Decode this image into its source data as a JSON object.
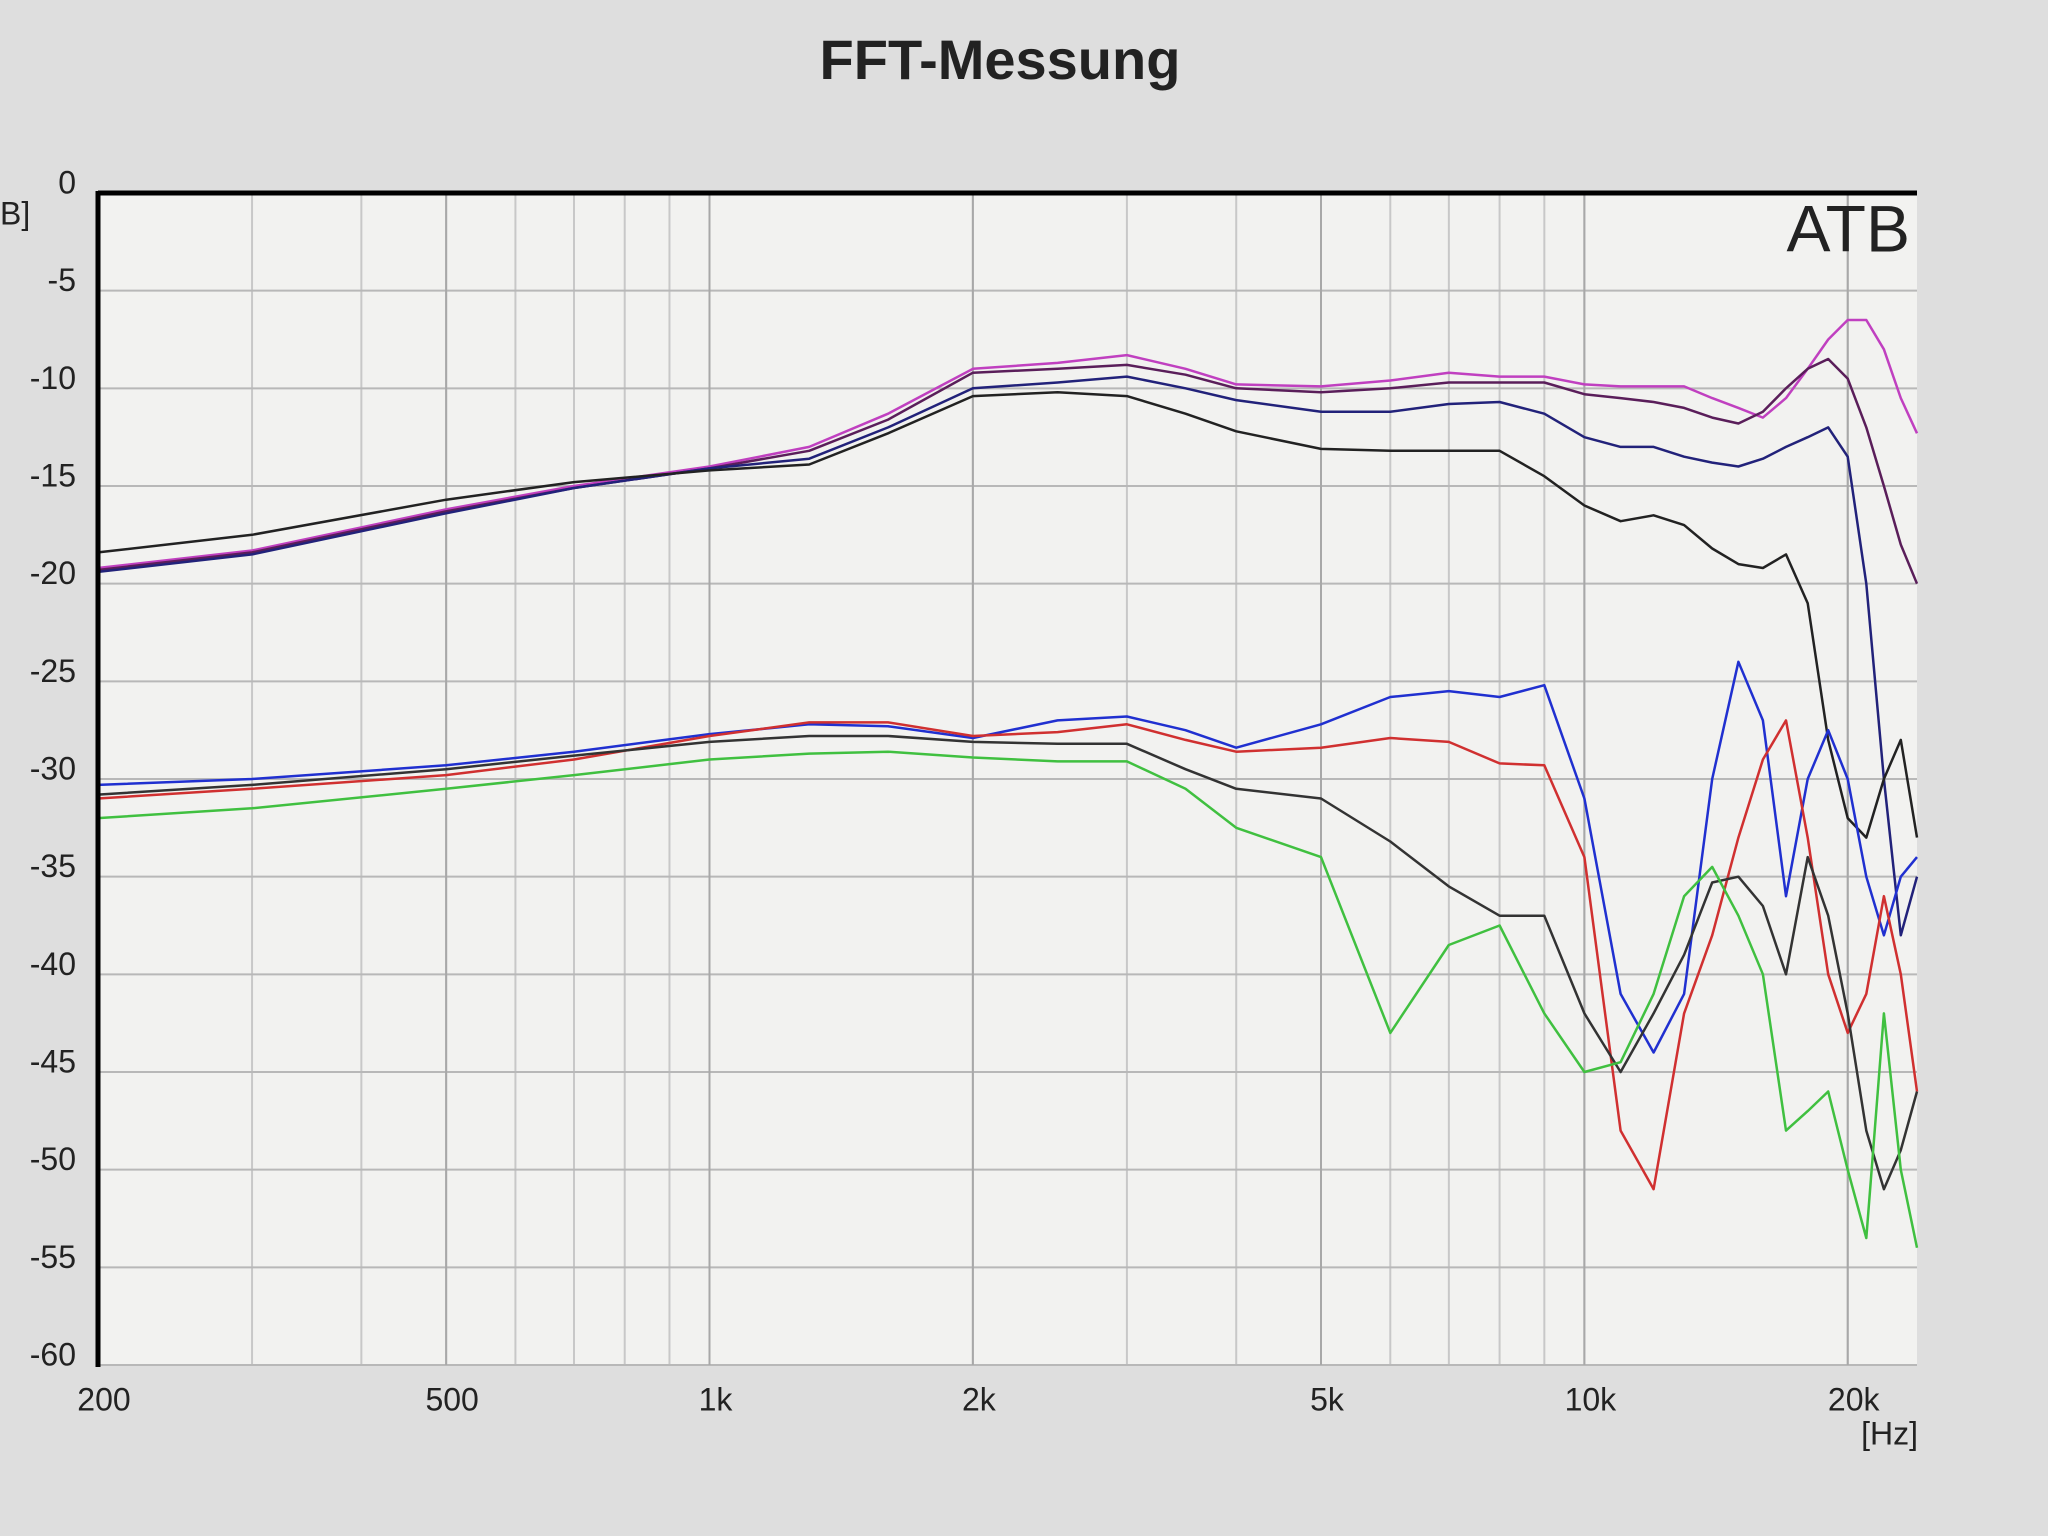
{
  "chart_data": {
    "type": "line",
    "title": "FFT-Messung",
    "y_label": "B]",
    "x_label": "[Hz]",
    "annotation": "ATB",
    "xscale": "log",
    "grid": true,
    "minor_grid": true,
    "xlim": [
      200,
      24000
    ],
    "ylim": [
      -60,
      0
    ],
    "xticks": [
      200,
      500,
      {
        "value": 1000,
        "label": "1k"
      },
      {
        "value": 2000,
        "label": "2k"
      },
      {
        "value": 5000,
        "label": "5k"
      },
      {
        "value": 10000,
        "label": "10k"
      },
      {
        "value": 20000,
        "label": "20k"
      }
    ],
    "yticks": [
      0,
      -5,
      -10,
      -15,
      -20,
      -25,
      -30,
      -35,
      -40,
      -45,
      -50,
      -55,
      -60
    ],
    "x": [
      200,
      300,
      500,
      700,
      1000,
      1300,
      1600,
      2000,
      2500,
      3000,
      3500,
      4000,
      5000,
      6000,
      7000,
      8000,
      9000,
      10000,
      11000,
      12000,
      13000,
      14000,
      15000,
      16000,
      17000,
      18000,
      19000,
      20000,
      21000,
      22000,
      23000,
      24000
    ],
    "series": [
      {
        "color": "#c040c0",
        "values": [
          -19.2,
          -18.3,
          -16.2,
          -15,
          -14,
          -13,
          -11.3,
          -9.0,
          -8.7,
          -8.3,
          -9,
          -9.8,
          -9.9,
          -9.6,
          -9.2,
          -9.4,
          -9.4,
          -9.8,
          -9.9,
          -9.9,
          -9.9,
          -10.5,
          -11,
          -11.5,
          -10.5,
          -9,
          -7.5,
          -6.5,
          -6.5,
          -8,
          -10.5,
          -12.3
        ]
      },
      {
        "color": "#5a1e5a",
        "values": [
          -19.3,
          -18.4,
          -16.3,
          -15.1,
          -14.1,
          -13.2,
          -11.6,
          -9.2,
          -9.0,
          -8.8,
          -9.3,
          -10,
          -10.2,
          -10,
          -9.7,
          -9.7,
          -9.7,
          -10.3,
          -10.5,
          -10.7,
          -11,
          -11.5,
          -11.8,
          -11.2,
          -10,
          -9,
          -8.5,
          -9.5,
          -12,
          -15,
          -18,
          -20
        ]
      },
      {
        "color": "#22227a",
        "values": [
          -19.4,
          -18.5,
          -16.4,
          -15.1,
          -14.1,
          -13.6,
          -12,
          -10,
          -9.7,
          -9.4,
          -10,
          -10.6,
          -11.2,
          -11.2,
          -10.8,
          -10.7,
          -11.3,
          -12.5,
          -13,
          -13,
          -13.5,
          -13.8,
          -14,
          -13.6,
          -13,
          -12.5,
          -12,
          -13.5,
          -20,
          -30,
          -38,
          -35
        ]
      },
      {
        "color": "#222222",
        "values": [
          -18.4,
          -17.5,
          -15.7,
          -14.8,
          -14.2,
          -13.9,
          -12.3,
          -10.4,
          -10.2,
          -10.4,
          -11.3,
          -12.2,
          -13.1,
          -13.2,
          -13.2,
          -13.2,
          -14.5,
          -16,
          -16.8,
          -16.5,
          -17,
          -18.2,
          -19,
          -19.2,
          -18.5,
          -21,
          -28,
          -32,
          -33,
          -30,
          -28,
          -33
        ]
      },
      {
        "color": "#2030d0",
        "values": [
          -30.3,
          -30,
          -29.3,
          -28.6,
          -27.7,
          -27.2,
          -27.3,
          -27.9,
          -27,
          -26.8,
          -27.5,
          -28.4,
          -27.2,
          -25.8,
          -25.5,
          -25.8,
          -25.2,
          -31,
          -41,
          -44,
          -41,
          -30,
          -24,
          -27,
          -36,
          -30,
          -27.5,
          -30,
          -35,
          -38,
          -35,
          -34
        ]
      },
      {
        "color": "#d03030",
        "values": [
          -31,
          -30.5,
          -29.8,
          -29,
          -27.8,
          -27.1,
          -27.1,
          -27.8,
          -27.6,
          -27.2,
          -28,
          -28.6,
          -28.4,
          -27.9,
          -28.1,
          -29.2,
          -29.3,
          -34,
          -48,
          -51,
          -42,
          -38,
          -33,
          -29,
          -27,
          -33,
          -40,
          -43,
          -41,
          -36,
          -40,
          -46
        ]
      },
      {
        "color": "#333333",
        "values": [
          -30.8,
          -30.3,
          -29.5,
          -28.8,
          -28.1,
          -27.8,
          -27.8,
          -28.1,
          -28.2,
          -28.2,
          -29.5,
          -30.5,
          -31,
          -33.2,
          -35.5,
          -37,
          -37,
          -42,
          -45,
          -42,
          -39,
          -35.3,
          -35,
          -36.5,
          -40,
          -34,
          -37,
          -42,
          -48,
          -51,
          -49,
          -46
        ]
      },
      {
        "color": "#40c040",
        "values": [
          -32,
          -31.5,
          -30.5,
          -29.8,
          -29,
          -28.7,
          -28.6,
          -28.9,
          -29.1,
          -29.1,
          -30.5,
          -32.5,
          -34,
          -43,
          -38.5,
          -37.5,
          -42,
          -45,
          -44.5,
          -41,
          -36,
          -34.5,
          -37,
          -40,
          -48,
          -47,
          -46,
          -50,
          -53.5,
          -42,
          -50,
          -54
        ]
      }
    ]
  }
}
